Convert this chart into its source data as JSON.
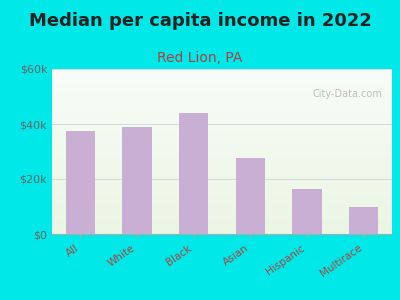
{
  "title": "Median per capita income in 2022",
  "subtitle": "Red Lion, PA",
  "categories": [
    "All",
    "White",
    "Black",
    "Asian",
    "Hispanic",
    "Multirace"
  ],
  "values": [
    37500,
    39000,
    44000,
    27500,
    16500,
    10000
  ],
  "bar_color": "#c9afd4",
  "title_fontsize": 13,
  "subtitle_fontsize": 10,
  "title_color": "#222222",
  "subtitle_color": "#aa4444",
  "ytick_label_color": "#666666",
  "xtick_label_color": "#aa4444",
  "ylim": [
    0,
    60000
  ],
  "yticks": [
    0,
    20000,
    40000,
    60000
  ],
  "ytick_labels": [
    "$0",
    "$20k",
    "$40k",
    "$60k"
  ],
  "background_color": "#00e8e8",
  "watermark": "City-Data.com"
}
